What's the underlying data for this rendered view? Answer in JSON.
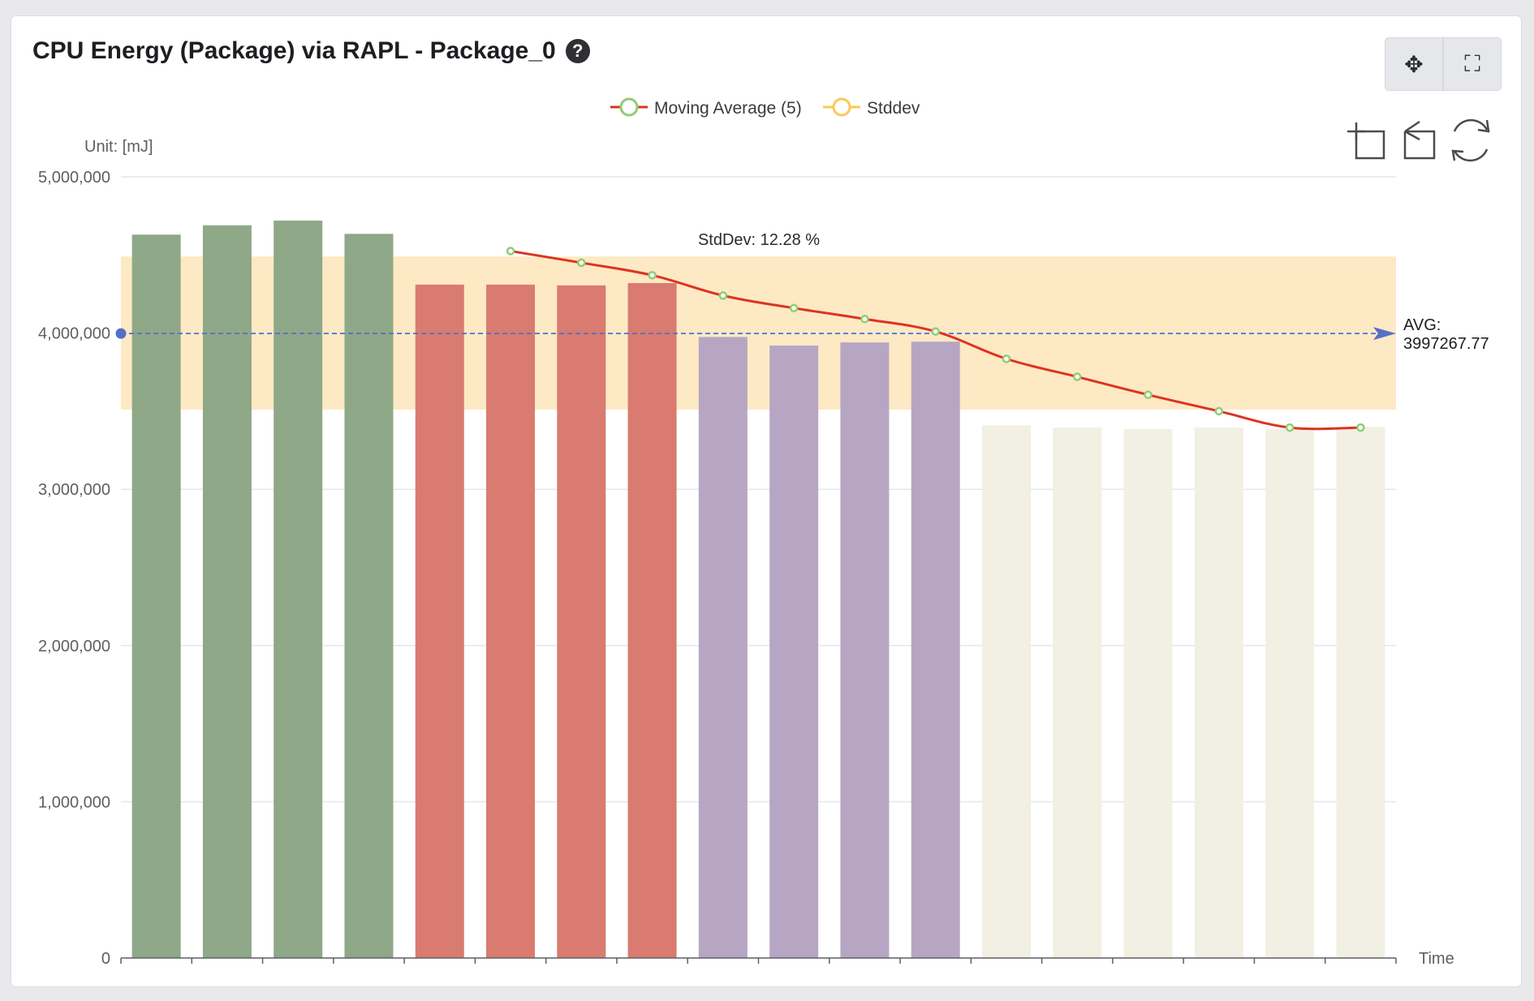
{
  "card": {
    "title": "CPU Energy (Package) via RAPL - Package_0",
    "help_icon": "question-circle-icon",
    "tools": [
      {
        "name": "move-icon",
        "glyph": "✥"
      },
      {
        "name": "fullscreen-icon",
        "glyph": "⛶"
      }
    ]
  },
  "chart_toolbox": [
    {
      "name": "zoom-icon"
    },
    {
      "name": "zoom-reset-icon"
    },
    {
      "name": "restore-icon"
    }
  ],
  "chart_data": {
    "type": "bar",
    "unit_label": "Unit: [mJ]",
    "xlabel": "Time",
    "ylim": [
      0,
      5000000
    ],
    "yticks": [
      0,
      1000000,
      2000000,
      3000000,
      4000000,
      5000000
    ],
    "ytick_labels": [
      "0",
      "1,000,000",
      "2,000,000",
      "3,000,000",
      "4,000,000",
      "5,000,000"
    ],
    "grid": true,
    "legend_position": "top-center",
    "legend": [
      {
        "label": "Moving Average (5)",
        "line_color": "#dd3322",
        "marker_color": "#91cc75"
      },
      {
        "label": "Stddev",
        "line_color": "#fac858",
        "marker_color": "#fac858"
      }
    ],
    "bars": {
      "values": [
        4630000,
        4690000,
        4720000,
        4635000,
        4310000,
        4310000,
        4305000,
        4320000,
        3975000,
        3920000,
        3940000,
        3945000,
        3410000,
        3395000,
        3385000,
        3395000,
        3385000,
        3400000
      ],
      "groups": [
        0,
        0,
        0,
        0,
        1,
        1,
        1,
        1,
        2,
        2,
        2,
        2,
        3,
        3,
        3,
        3,
        3,
        3
      ],
      "group_colors": [
        "#8fa888",
        "#d97b70",
        "#b6a6c3",
        "#f1f0e3"
      ]
    },
    "moving_average": {
      "name": "Moving Average (5)",
      "start_index": 5,
      "values": [
        4525000,
        4450000,
        4370000,
        4240000,
        4160000,
        4090000,
        4010000,
        3835000,
        3720000,
        3605000,
        3500000,
        3395000,
        3395000
      ],
      "line_color": "#dd3322",
      "marker_color": "#91cc75"
    },
    "stddev_band": {
      "name": "Stddev",
      "lower": 3510000,
      "upper": 4490000,
      "label": "StdDev: 12.28 %",
      "color": "#fde9c4"
    },
    "average": {
      "value": 3997267.77,
      "label_top": "AVG:",
      "label_bottom": "3997267.77",
      "color": "#5470c6"
    }
  }
}
